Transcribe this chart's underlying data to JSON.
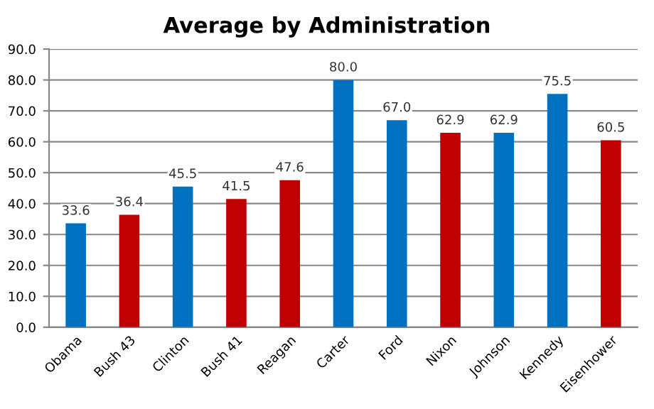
{
  "chart_data": {
    "type": "bar",
    "title": "Average by Administration",
    "categories": [
      "Obama",
      "Bush 43",
      "Clinton",
      "Bush 41",
      "Reagan",
      "Carter",
      "Ford",
      "Nixon",
      "Johnson",
      "Kennedy",
      "Eisenhower"
    ],
    "values": [
      33.6,
      36.4,
      45.5,
      41.5,
      47.6,
      80.0,
      67.0,
      62.9,
      62.9,
      75.5,
      60.5
    ],
    "colors": [
      "#0070c0",
      "#c00000",
      "#0070c0",
      "#c00000",
      "#c00000",
      "#0070c0",
      "#0070c0",
      "#c00000",
      "#0070c0",
      "#0070c0",
      "#c00000"
    ],
    "value_labels": [
      "33.6",
      "36.4",
      "45.5",
      "41.5",
      "47.6",
      "80.0",
      "67.0",
      "62.9",
      "62.9",
      "75.5",
      "60.5"
    ],
    "ylim": [
      0,
      90
    ],
    "yticks": [
      {
        "value": 0,
        "label": "0.0"
      },
      {
        "value": 10,
        "label": "10.0"
      },
      {
        "value": 20,
        "label": "20.0"
      },
      {
        "value": 30,
        "label": "30.0"
      },
      {
        "value": 40,
        "label": "40.0"
      },
      {
        "value": 50,
        "label": "50.0"
      },
      {
        "value": 60,
        "label": "60.0"
      },
      {
        "value": 70,
        "label": "70.0"
      },
      {
        "value": 80,
        "label": "80.0"
      },
      {
        "value": 90,
        "label": "90.0"
      }
    ],
    "grid": "y",
    "legend": false
  }
}
